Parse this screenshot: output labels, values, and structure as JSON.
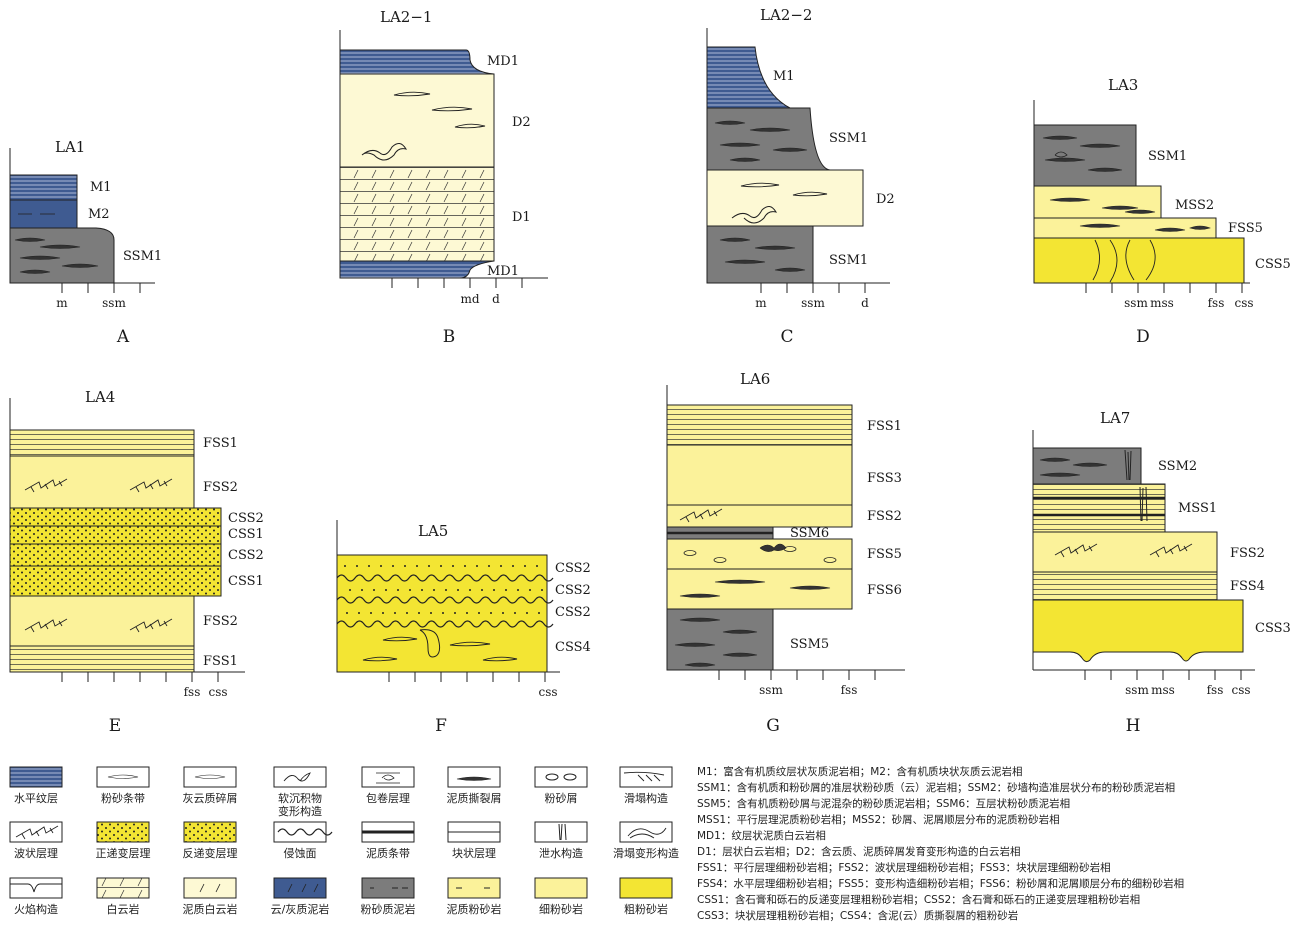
{
  "colors": {
    "blue": "#3f5b91",
    "gray": "#7c7c7c",
    "cream": "#fdf9d4",
    "lightYellow": "#fbf29a",
    "brightYellow": "#f3e533",
    "ink": "#222222"
  },
  "columns": {
    "A": {
      "title": "LA1",
      "panel": "A",
      "facies": [
        "M1",
        "M2",
        "SSM1"
      ],
      "axis": [
        "m",
        "ssm"
      ]
    },
    "B": {
      "title": "LA2−1",
      "panel": "B",
      "facies": [
        "MD1",
        "D2",
        "D1",
        "MD1"
      ],
      "axis": [
        "md",
        "d"
      ]
    },
    "C": {
      "title": "LA2−2",
      "panel": "C",
      "facies": [
        "M1",
        "SSM1",
        "D2",
        "SSM1"
      ],
      "axis": [
        "m",
        "ssm",
        "d"
      ]
    },
    "D": {
      "title": "LA3",
      "panel": "D",
      "facies": [
        "SSM1",
        "MSS2",
        "FSS5",
        "CSS5"
      ],
      "axis": [
        "ssm",
        "mss",
        "fss",
        "css"
      ]
    },
    "E": {
      "title": "LA4",
      "panel": "E",
      "facies": [
        "FSS1",
        "FSS2",
        "CSS2",
        "CSS1",
        "CSS2",
        "CSS1",
        "FSS2",
        "FSS1"
      ],
      "axis": [
        "fss",
        "css"
      ]
    },
    "F": {
      "title": "LA5",
      "panel": "F",
      "facies": [
        "CSS2",
        "CSS2",
        "CSS2",
        "CSS4"
      ],
      "axis": [
        "css"
      ]
    },
    "G": {
      "title": "LA6",
      "panel": "G",
      "facies": [
        "FSS1",
        "FSS3",
        "FSS2",
        "SSM6",
        "FSS5",
        "FSS6",
        "SSM5"
      ],
      "axis": [
        "ssm",
        "fss"
      ]
    },
    "H": {
      "title": "LA7",
      "panel": "H",
      "facies": [
        "SSM2",
        "MSS1",
        "FSS2",
        "FSS4",
        "CSS3"
      ],
      "axis": [
        "ssm",
        "mss",
        "fss",
        "css"
      ]
    }
  },
  "legend": {
    "row1": [
      "水平纹层",
      "粉砂条带",
      "灰云质碎屑",
      "软沉积物",
      "包卷层理",
      "泥质撕裂屑",
      "粉砂屑",
      "滑塌构造"
    ],
    "row1_extra": "变形构造",
    "row2": [
      "波状层理",
      "正递变层理",
      "反递变层理",
      "侵蚀面",
      "泥质条带",
      "块状层理",
      "泄水构造",
      "滑塌变形构造"
    ],
    "row3": [
      "火焰构造",
      "白云岩",
      "泥质白云岩",
      "云/灰质泥岩",
      "粉砂质泥岩",
      "泥质粉砂岩",
      "细粉砂岩",
      "粗粉砂岩"
    ]
  },
  "notes": [
    "M1：富含有机质纹层状灰质泥岩相；M2：含有机质块状灰质云泥岩相",
    "SSM1：含有机质和粉砂屑的准层状粉砂质（云）泥岩相；SSM2：砂墙构造准层状分布的粉砂质泥岩相",
    "SSM5：含有机质粉砂屑与泥混杂的粉砂质泥岩相；SSM6：互层状粉砂质泥岩相",
    "MSS1：平行层理泥质粉砂岩相；MSS2：砂屑、泥屑顺层分布的泥质粉砂岩相",
    "MD1：纹层状泥质白云岩相",
    "D1：层状白云岩相；D2：含云质、泥质碎屑发育变形构造的白云岩相",
    "FSS1：平行层理细粉砂岩相；FSS2：波状层理细粉砂岩相；FSS3：块状层理细粉砂岩相",
    "FSS4：水平层理细粉砂岩相；FSS5：变形构造细粉砂岩相；FSS6：粉砂屑和泥屑顺层分布的细粉砂岩相",
    "CSS1：含石膏和砾石的反递变层理粗粉砂岩相；CSS2：含石膏和砾石的正递变层理粗粉砂岩相",
    "CSS3：块状层理粗粉砂岩相；CSS4：含泥(云）质撕裂屑的粗粉砂岩"
  ]
}
